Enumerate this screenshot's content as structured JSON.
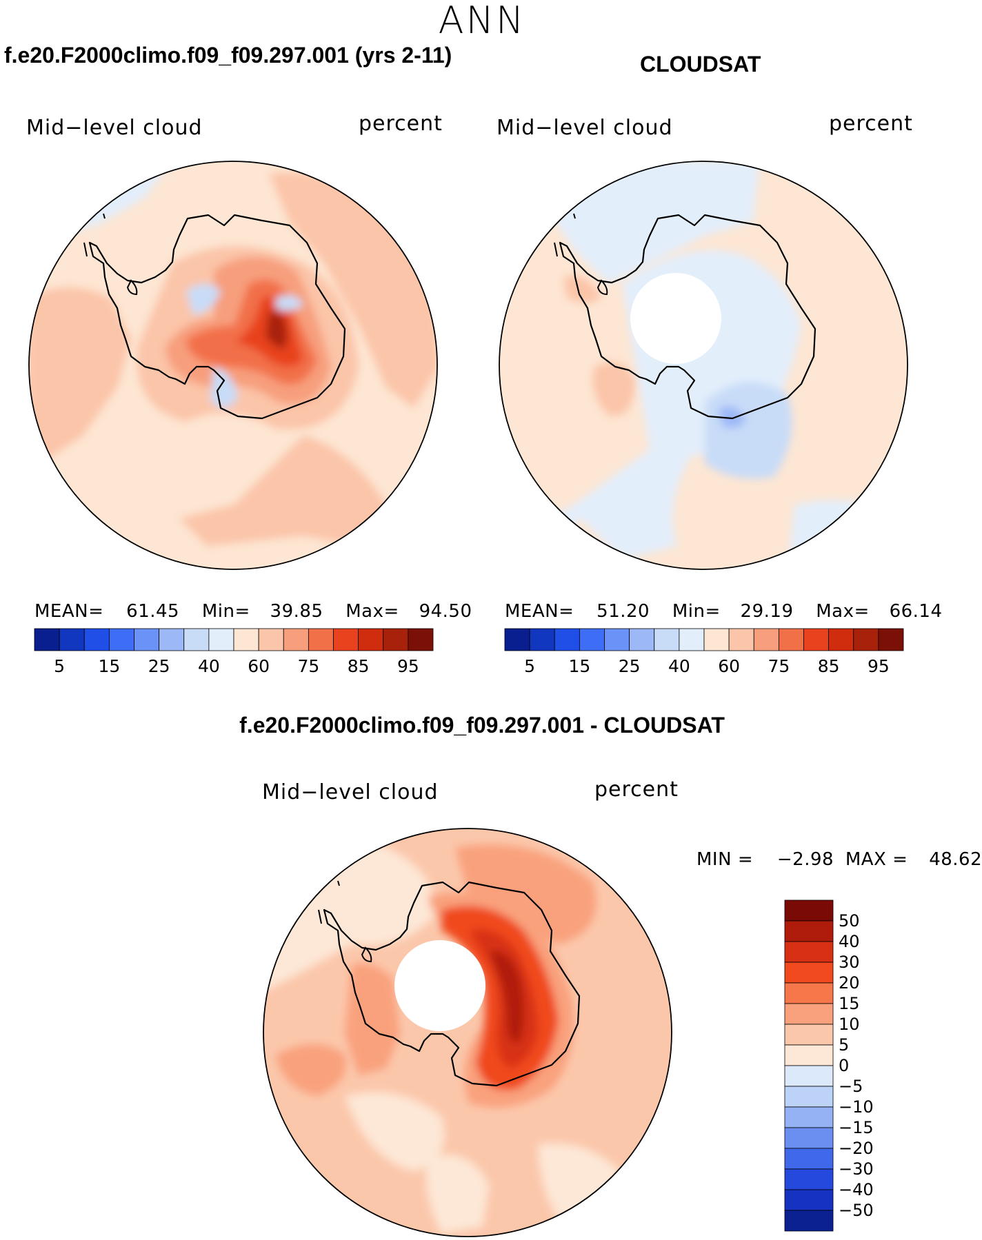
{
  "season": "ANN",
  "panels": {
    "model": {
      "title": "f.e20.F2000climo.f09_f09.297.001 (yrs 2-11)",
      "variable": "Mid−level cloud",
      "units": "percent",
      "mean_label": "MEAN=",
      "mean": "61.45",
      "min_label": "Min=",
      "min": "39.85",
      "max_label": "Max=",
      "max": "94.50"
    },
    "obs": {
      "title": "CLOUDSAT",
      "variable": "Mid−level cloud",
      "units": "percent",
      "mean_label": "MEAN=",
      "mean": "51.20",
      "min_label": "Min=",
      "min": "29.19",
      "max_label": "Max=",
      "max": "66.14"
    },
    "diff": {
      "title": "f.e20.F2000climo.f09_f09.297.001 - CLOUDSAT",
      "variable": "Mid−level cloud",
      "units": "percent",
      "min_label": "MIN =",
      "min": "−2.98",
      "max_label": "MAX =",
      "max": "48.62"
    }
  },
  "colorbar_abs": {
    "colors": [
      "#0a1f8f",
      "#1136c0",
      "#1f4fe6",
      "#3d6ef5",
      "#6b93f7",
      "#9db8f7",
      "#c8dcf8",
      "#e3eefb",
      "#fde6d3",
      "#fbc5a9",
      "#f79f7d",
      "#f27048",
      "#e8431e",
      "#cf2d0e",
      "#a8220b",
      "#7a1006"
    ],
    "ticks": [
      "5",
      "15",
      "25",
      "40",
      "60",
      "75",
      "85",
      "95"
    ]
  },
  "colorbar_diff": {
    "colors": [
      "#7a0a06",
      "#b01c0b",
      "#d73015",
      "#f04a1e",
      "#f6784a",
      "#f9a17d",
      "#fbc7ab",
      "#fde7d6",
      "#dbe9fb",
      "#bcd2f7",
      "#95b3f4",
      "#6a8ff1",
      "#3f68ea",
      "#2549dc",
      "#1533c0",
      "#0b2192"
    ],
    "ticks": [
      "50",
      "40",
      "30",
      "20",
      "15",
      "10",
      "5",
      "0",
      "−5",
      "−10",
      "−15",
      "−20",
      "−30",
      "−40",
      "−50"
    ]
  }
}
